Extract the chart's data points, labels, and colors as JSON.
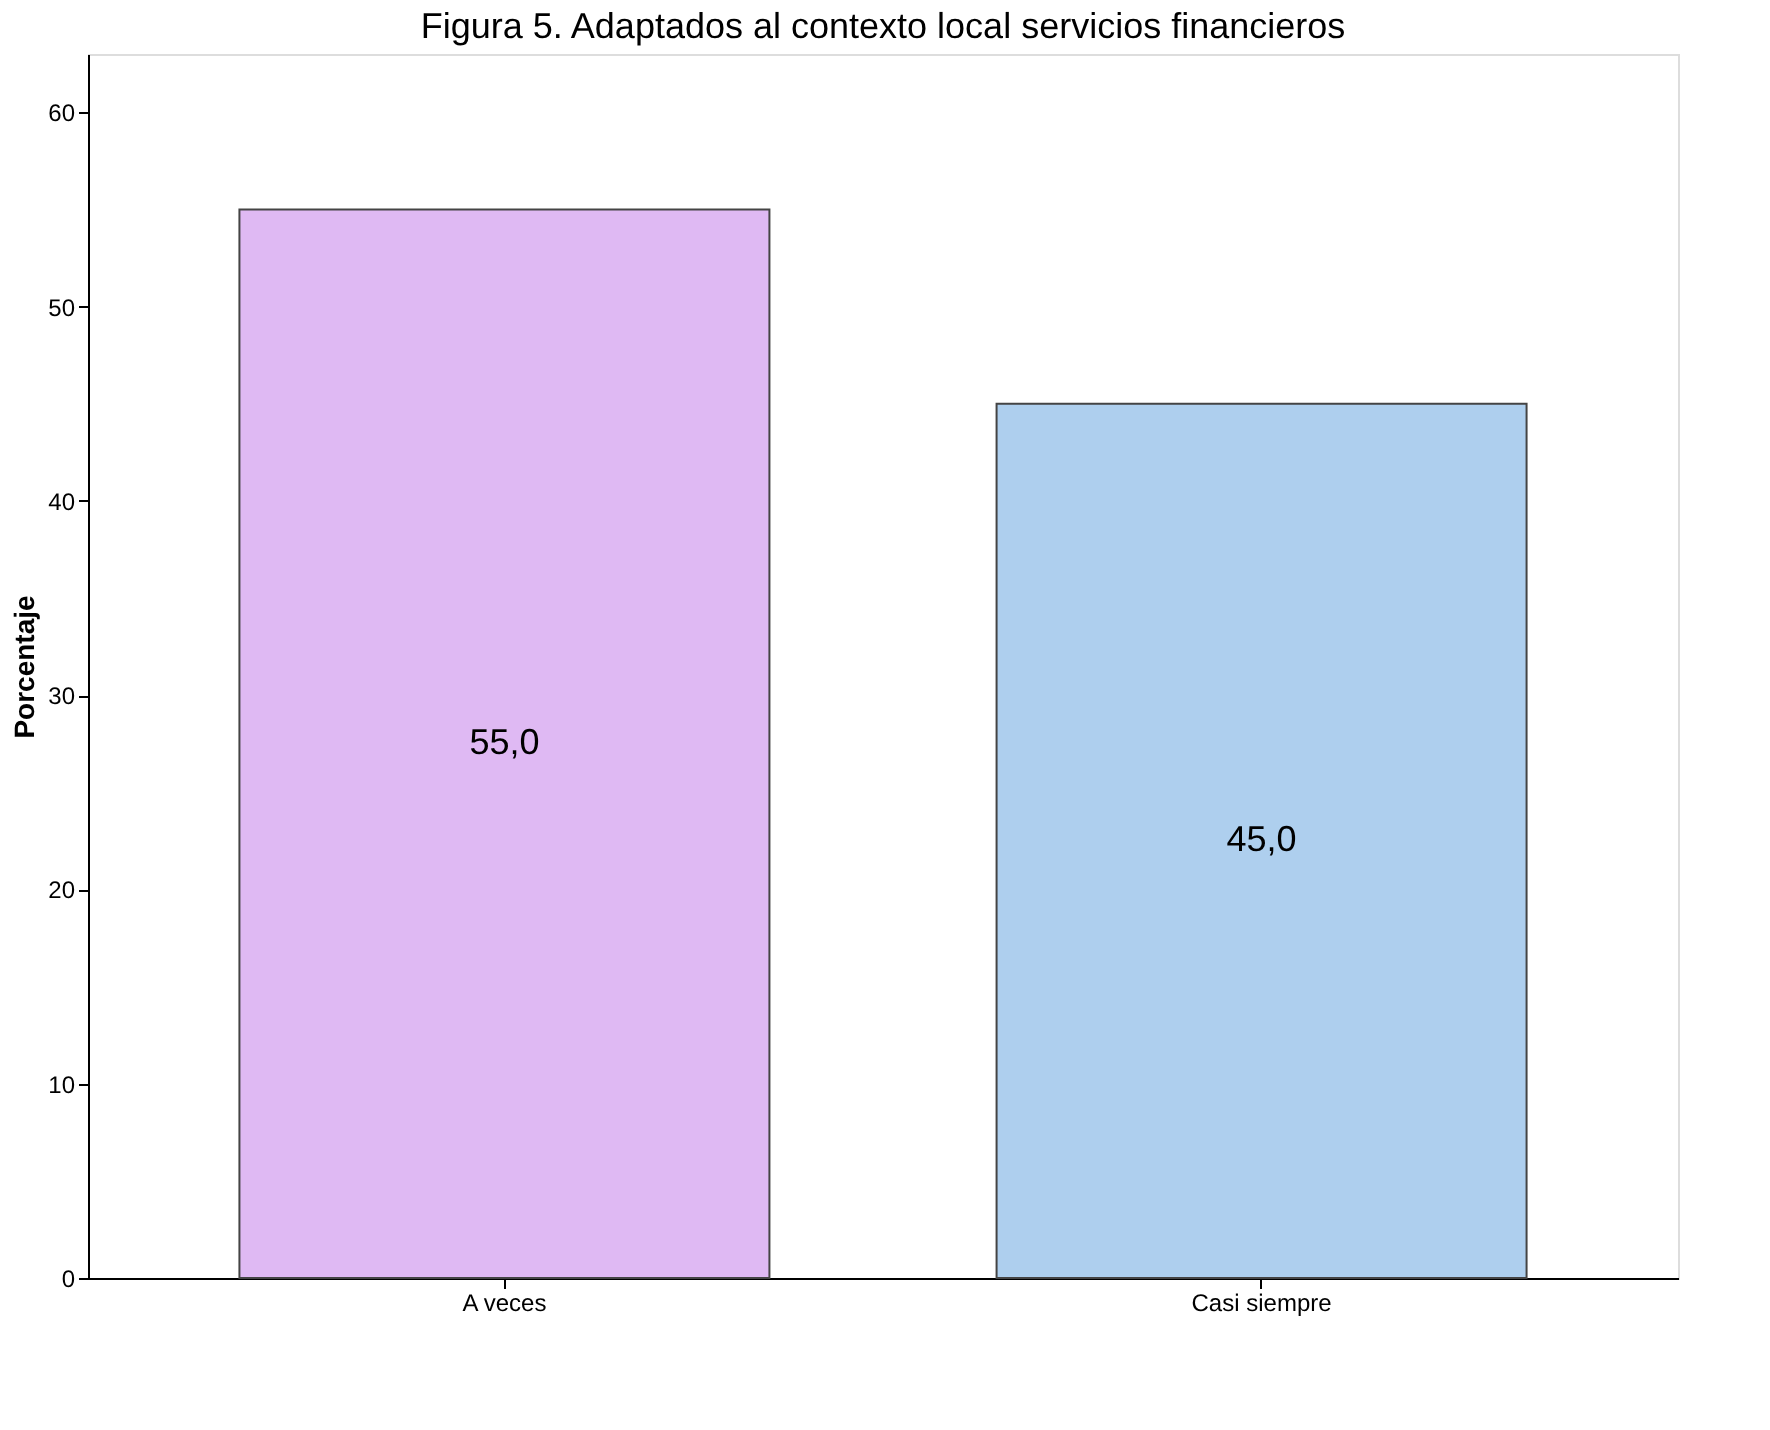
{
  "chart_data": {
    "type": "bar",
    "title": "Figura 5. Adaptados al contexto local servicios financieros",
    "ylabel": "Porcentaje",
    "categories": [
      "A veces",
      "Casi siempre"
    ],
    "values": [
      55.0,
      45.0
    ],
    "colors": [
      "#dfb9f3",
      "#aecfee"
    ],
    "value_labels": [
      "55,0",
      "45,0"
    ],
    "ylim": [
      0,
      63
    ],
    "yticks": [
      0,
      10,
      20,
      30,
      40,
      50,
      60
    ],
    "grid": false,
    "legend": false
  }
}
